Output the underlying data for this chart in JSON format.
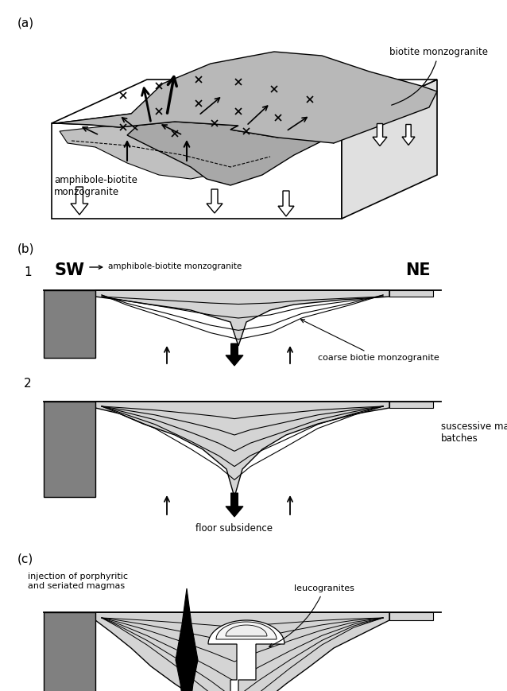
{
  "bg_color": "#ffffff",
  "light_gray": "#cccccc",
  "mid_gray": "#999999",
  "sill_gray": "#d4d4d4",
  "panel_a_label": "(a)",
  "panel_b_label": "(b)",
  "panel_c_label": "(c)",
  "label_1": "1",
  "label_2": "2",
  "text_SW": "SW",
  "text_NE": "NE",
  "text_biotite_monzogranite": "biotite monzogranite",
  "text_amphibole_biotite": "amphibole-biotite\nmonzogranite",
  "text_coarse_biotie": "coarse biotie monzogranite",
  "text_successive": "suscessive magma\nbatches",
  "text_floor_subsidence": "floor subsidence",
  "text_injection": "injection of porphyritic\nand seriated magmas",
  "text_leucogranites": "leucogranites",
  "text_amphibole_biotite_b": "amphibole-biotite monzogranite"
}
